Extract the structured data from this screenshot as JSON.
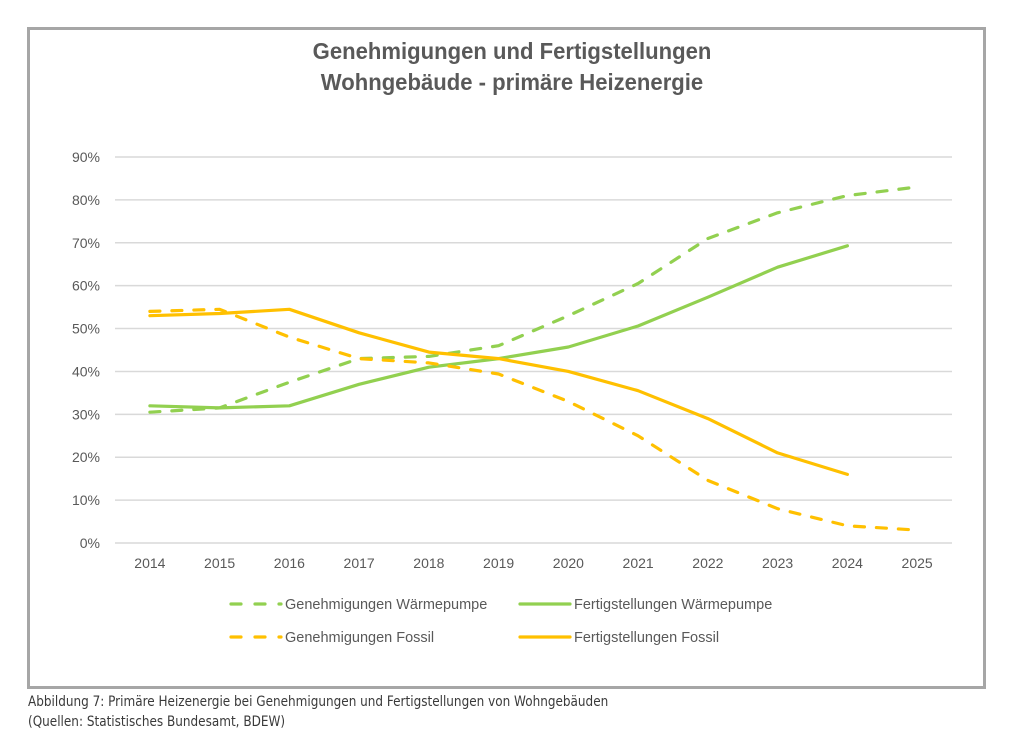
{
  "chart_data": {
    "type": "line",
    "title": [
      "Genehmigungen und Fertigstellungen",
      "Wohngebäude - primäre Heizenergie"
    ],
    "xlabel": "",
    "ylabel": "",
    "ylim": [
      0,
      90
    ],
    "yticks": [
      0,
      10,
      20,
      30,
      40,
      50,
      60,
      70,
      80,
      90
    ],
    "ytick_labels": [
      "0%",
      "10%",
      "20%",
      "30%",
      "40%",
      "50%",
      "60%",
      "70%",
      "80%",
      "90%"
    ],
    "categories": [
      "2014",
      "2015",
      "2016",
      "2017",
      "2018",
      "2019",
      "2020",
      "2021",
      "2022",
      "2023",
      "2024",
      "2025"
    ],
    "grid": "horizontal",
    "legend_position": "bottom",
    "series": [
      {
        "name": "Genehmigungen Wärmepumpe",
        "color": "#92D050",
        "dash": true,
        "values": [
          30.5,
          31.5,
          37.5,
          43,
          43.5,
          46,
          53,
          60.5,
          71,
          77,
          81,
          83
        ]
      },
      {
        "name": "Fertigstellungen Wärmepumpe",
        "color": "#92D050",
        "dash": false,
        "values": [
          32,
          31.5,
          32,
          37,
          41,
          43,
          45.7,
          50.6,
          57.3,
          64.3,
          69.3,
          null
        ]
      },
      {
        "name": "Genehmigungen Fossil",
        "color": "#FFC000",
        "dash": true,
        "values": [
          54,
          54.5,
          48,
          43,
          42,
          39.4,
          33,
          25,
          14.6,
          8,
          4,
          3
        ]
      },
      {
        "name": "Fertigstellungen Fossil",
        "color": "#FFC000",
        "dash": false,
        "values": [
          53,
          53.5,
          54.5,
          49,
          44.5,
          43,
          40,
          35.5,
          29,
          21,
          16,
          null
        ]
      }
    ]
  },
  "caption": {
    "line1": "Abbildung 7: Primäre Heizenergie bei Genehmigungen und Fertigstellungen von Wohngebäuden",
    "line2": "(Quellen: Statistisches Bundesamt, BDEW)"
  }
}
